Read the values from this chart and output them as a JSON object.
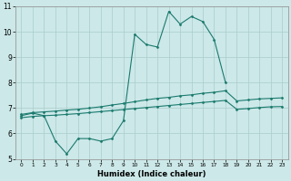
{
  "xlabel": "Humidex (Indice chaleur)",
  "color": "#1a7a6e",
  "bg_color": "#cce8e8",
  "grid_color": "#aacccc",
  "ylim": [
    5,
    11
  ],
  "xlim": [
    -0.5,
    23.5
  ],
  "yticks": [
    5,
    6,
    7,
    8,
    9,
    10,
    11
  ],
  "xticks": [
    0,
    1,
    2,
    3,
    4,
    5,
    6,
    7,
    8,
    9,
    10,
    11,
    12,
    13,
    14,
    15,
    16,
    17,
    18,
    19,
    20,
    21,
    22,
    23
  ],
  "x_values": [
    0,
    1,
    2,
    3,
    4,
    5,
    6,
    7,
    8,
    9,
    10,
    11,
    12,
    13,
    14,
    15,
    16,
    17,
    18,
    19,
    20,
    21,
    22,
    23
  ],
  "main_line": [
    6.7,
    6.8,
    6.7,
    5.7,
    5.2,
    5.8,
    5.8,
    5.7,
    5.8,
    6.5,
    9.9,
    9.5,
    9.4,
    10.8,
    10.3,
    10.6,
    10.4,
    9.7,
    8.0,
    null,
    null,
    null,
    null,
    null
  ],
  "upper_line": [
    6.75,
    6.82,
    6.85,
    6.88,
    6.92,
    6.95,
    7.0,
    7.05,
    7.12,
    7.18,
    7.25,
    7.32,
    7.38,
    7.42,
    7.48,
    7.52,
    7.58,
    7.62,
    7.68,
    7.28,
    7.32,
    7.36,
    7.38,
    7.4
  ],
  "lower_line": [
    6.62,
    6.67,
    6.7,
    6.72,
    6.75,
    6.78,
    6.82,
    6.86,
    6.9,
    6.94,
    6.98,
    7.02,
    7.06,
    7.1,
    7.14,
    7.18,
    7.22,
    7.26,
    7.3,
    6.95,
    6.98,
    7.02,
    7.05,
    7.06
  ]
}
